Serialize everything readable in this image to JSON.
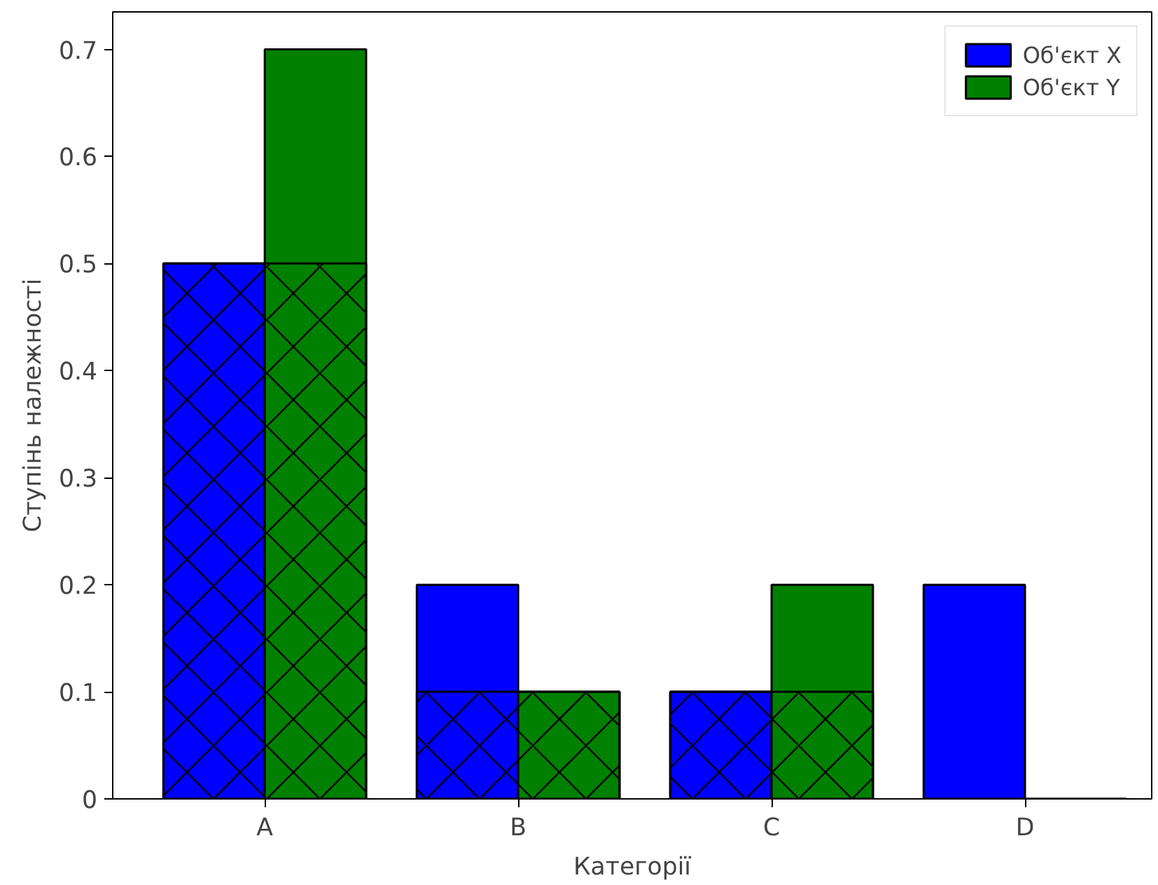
{
  "chart_data": {
    "type": "bar",
    "xlabel": "Категорії",
    "ylabel": "Ступінь належності",
    "categories": [
      "A",
      "B",
      "C",
      "D"
    ],
    "series": [
      {
        "name": "Об'єкт X",
        "color": "#0000ff",
        "values": [
          0.5,
          0.2,
          0.1,
          0.2
        ]
      },
      {
        "name": "Об'єкт Y",
        "color": "#008000",
        "values": [
          0.7,
          0.1,
          0.2,
          0
        ]
      },
      {
        "color": "#000000",
        "values": [
          0.5,
          0.1,
          0.1,
          0
        ]
      }
    ],
    "ylim": [
      0,
      0.735
    ],
    "yticks": [
      0,
      0.1,
      0.2,
      0.3,
      0.4,
      0.5,
      0.6,
      0.7
    ],
    "grid": false,
    "legend": "top right"
  }
}
